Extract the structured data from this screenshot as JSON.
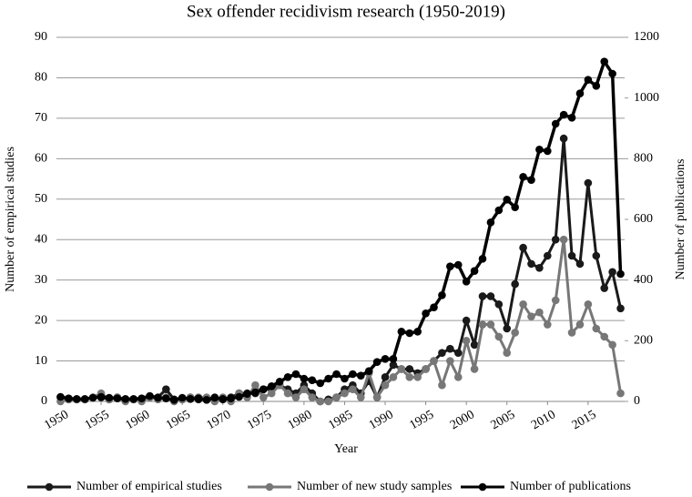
{
  "chart_data": {
    "type": "line",
    "title": "Sex offender recidivism research (1950-2019)",
    "xlabel": "Year",
    "ylabel": "Number of empirical studies",
    "y2label": "Number of publications",
    "x": [
      1950,
      1951,
      1952,
      1953,
      1954,
      1955,
      1956,
      1957,
      1958,
      1959,
      1960,
      1961,
      1962,
      1963,
      1964,
      1965,
      1966,
      1967,
      1968,
      1969,
      1970,
      1971,
      1972,
      1973,
      1974,
      1975,
      1976,
      1977,
      1978,
      1979,
      1980,
      1981,
      1982,
      1983,
      1984,
      1985,
      1986,
      1987,
      1988,
      1989,
      1990,
      1991,
      1992,
      1993,
      1994,
      1995,
      1996,
      1997,
      1998,
      1999,
      2000,
      2001,
      2002,
      2003,
      2004,
      2005,
      2006,
      2007,
      2008,
      2009,
      2010,
      2011,
      2012,
      2013,
      2014,
      2015,
      2016,
      2017,
      2018,
      2019
    ],
    "xlim": [
      1949.5,
      2019.5
    ],
    "xticks": [
      1950,
      1955,
      1960,
      1965,
      1970,
      1975,
      1980,
      1985,
      1990,
      1995,
      2000,
      2005,
      2010,
      2015
    ],
    "ylim": [
      0,
      90
    ],
    "yticks": [
      0,
      10,
      20,
      30,
      40,
      50,
      60,
      70,
      80,
      90
    ],
    "y2lim": [
      0,
      1200
    ],
    "y2ticks": [
      0,
      200,
      400,
      600,
      800,
      1000,
      1200
    ],
    "grid": true,
    "legend": "bottom",
    "series": [
      {
        "name": "Number of empirical studies",
        "color": "#1a1a1a",
        "axis": "y",
        "values": [
          1,
          0.5,
          0.5,
          0.5,
          1,
          1,
          0.5,
          1,
          0.5,
          0.5,
          0.5,
          1,
          1,
          3,
          0.5,
          0.5,
          1,
          0.5,
          0.5,
          1,
          0.5,
          1,
          2,
          2,
          2,
          3,
          3,
          4,
          3,
          2,
          4,
          2,
          0,
          0.5,
          1,
          3,
          4,
          2,
          5,
          1,
          6,
          9,
          8,
          8,
          7,
          8,
          10,
          12,
          13,
          12,
          20,
          14,
          26,
          26,
          24,
          18,
          29,
          38,
          34,
          33,
          36,
          40,
          65,
          36,
          34,
          54,
          36,
          28,
          32,
          23
        ]
      },
      {
        "name": "Number of new study samples",
        "color": "#777777",
        "axis": "y",
        "values": [
          0,
          0.5,
          0.5,
          0.5,
          1,
          2,
          0.5,
          1,
          0,
          0.5,
          0,
          1,
          0.5,
          1,
          0,
          0.5,
          1,
          1,
          1,
          0,
          1,
          0,
          2,
          1,
          4,
          1,
          2,
          4,
          2,
          1,
          3,
          1,
          0,
          0,
          1,
          2,
          3,
          1,
          7,
          1,
          4,
          6,
          8,
          6,
          6,
          8,
          10,
          4,
          10,
          6,
          15,
          8,
          19,
          19,
          16,
          12,
          17,
          24,
          21,
          22,
          19,
          25,
          40,
          17,
          19,
          24,
          18,
          16,
          14,
          2
        ]
      },
      {
        "name": "Number of publications",
        "color": "#000000",
        "axis": "y2",
        "values": [
          15,
          10,
          8,
          8,
          12,
          15,
          12,
          10,
          8,
          8,
          10,
          18,
          12,
          10,
          5,
          12,
          8,
          10,
          5,
          12,
          8,
          10,
          15,
          25,
          30,
          40,
          50,
          65,
          80,
          90,
          75,
          70,
          60,
          75,
          90,
          75,
          90,
          85,
          100,
          130,
          140,
          140,
          230,
          225,
          230,
          290,
          310,
          350,
          445,
          450,
          395,
          430,
          470,
          590,
          630,
          665,
          640,
          740,
          730,
          830,
          825,
          915,
          945,
          935,
          1015,
          1060,
          1040,
          1120,
          1080,
          420
        ]
      }
    ]
  }
}
